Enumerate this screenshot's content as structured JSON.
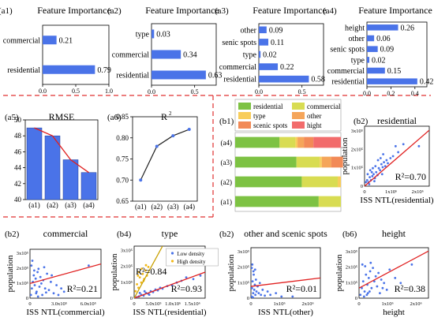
{
  "chart_data": [
    {
      "panel": "(a1)",
      "type": "bar",
      "orientation": "horizontal",
      "title": "Feature Importance",
      "categories": [
        "commercial",
        "residential"
      ],
      "values": [
        0.21,
        0.79
      ],
      "value_labels": [
        "0.21",
        "0.79"
      ],
      "xlim": [
        0,
        1
      ],
      "xticks": [
        "0.0",
        "0.5",
        "1.0"
      ],
      "color": "#4a73e8"
    },
    {
      "panel": "(a2)",
      "type": "bar",
      "orientation": "horizontal",
      "title": "Feature Importance",
      "categories": [
        "type",
        "commercial",
        "residential"
      ],
      "values": [
        0.03,
        0.34,
        0.63
      ],
      "value_labels": [
        "0.03",
        "0.34",
        "0.63"
      ],
      "xlim": [
        0,
        0.75
      ],
      "xticks": [
        "0.0",
        "0.5"
      ],
      "color": "#4a73e8"
    },
    {
      "panel": "(a3)",
      "type": "bar",
      "orientation": "horizontal",
      "title": "Feature  Importance",
      "categories": [
        "other",
        "senic spots",
        "type",
        "commercial",
        "residential"
      ],
      "values": [
        0.09,
        0.11,
        0.02,
        0.22,
        0.58
      ],
      "value_labels": [
        "0.09",
        "0.11",
        "0.02",
        "0.22",
        "0.58"
      ],
      "xlim": [
        0,
        0.75
      ],
      "xticks": [
        "0.0",
        "0.5"
      ],
      "color": "#4a73e8"
    },
    {
      "panel": "(a4)",
      "type": "bar",
      "orientation": "horizontal",
      "title": "Feature Importance",
      "categories": [
        "height",
        "other",
        "senic spots",
        "type",
        "commercial",
        "residential"
      ],
      "values": [
        0.26,
        0.06,
        0.09,
        0.02,
        0.15,
        0.42
      ],
      "value_labels": [
        "0.26",
        "0.06",
        "0.09",
        "0.02",
        "0.15",
        "0.42"
      ],
      "xlim": [
        0,
        0.5
      ],
      "xticks": [
        "0.0",
        "0.2",
        "0.4"
      ],
      "color": "#4a73e8"
    },
    {
      "panel": "(a5)",
      "type": "bar",
      "title": "RMSE",
      "categories": [
        "(a1)",
        "(a2)",
        "(a3)",
        "(a4)"
      ],
      "values": [
        49.0,
        48.0,
        45.0,
        43.4
      ],
      "ylim": [
        40,
        50
      ],
      "yticks": [
        "40",
        "42",
        "44",
        "46",
        "48",
        "50"
      ],
      "color": "#4a73e8",
      "line_color": "#e02020"
    },
    {
      "panel": "(a6)",
      "type": "line",
      "title": "R",
      "title_sup": "2",
      "categories": [
        "(a1)",
        "(a2)",
        "(a3)",
        "(a4)"
      ],
      "values": [
        0.7,
        0.78,
        0.805,
        0.82
      ],
      "ylim": [
        0.65,
        0.85
      ],
      "yticks": [
        "0.65",
        "0.70",
        "0.75",
        "0.80",
        "0.85"
      ],
      "color": "#222222",
      "marker_color": "#4a73e8"
    },
    {
      "panel": "(b1)",
      "type": "bar",
      "orientation": "horizontal",
      "stacked": true,
      "categories": [
        "(a4)",
        "(a3)",
        "(a2)",
        "(a1)"
      ],
      "series": [
        {
          "name": "residential",
          "color": "#7dc243",
          "values": [
            0.42,
            0.58,
            0.63,
            0.79
          ]
        },
        {
          "name": "commercial",
          "color": "#d8dc52",
          "values": [
            0.15,
            0.22,
            0.34,
            0.21
          ]
        },
        {
          "name": "type",
          "color": "#f8cd5b",
          "values": [
            0.02,
            0.02,
            0.03,
            0
          ]
        },
        {
          "name": "other",
          "color": "#f5a55a",
          "values": [
            0.06,
            0.09,
            0,
            0
          ]
        },
        {
          "name": "scenic spots",
          "color": "#f28a57",
          "values": [
            0.09,
            0.11,
            0,
            0
          ]
        },
        {
          "name": "hight",
          "color": "#f26b6b",
          "values": [
            0.26,
            0,
            0,
            0
          ]
        }
      ]
    },
    {
      "panel": "(b2)",
      "type": "scatter",
      "title": "residential",
      "xlabel": "ISS NTL(residential)",
      "ylabel": "population",
      "xticks": [
        "0",
        "1x10⁶",
        "2x10⁶"
      ],
      "yticks": [
        "0",
        "1x10⁵",
        "2x10⁵",
        "3x10⁵"
      ],
      "annotation": "R²=0.70",
      "xlim": [
        0,
        2500000
      ],
      "ylim": [
        0,
        300000
      ],
      "trend": [
        [
          0,
          0
        ],
        [
          2500000,
          280000
        ]
      ],
      "points": [
        [
          50000,
          20000
        ],
        [
          100000,
          30000
        ],
        [
          150000,
          20000
        ],
        [
          200000,
          45000
        ],
        [
          250000,
          30000
        ],
        [
          300000,
          50000
        ],
        [
          350000,
          60000
        ],
        [
          400000,
          40000
        ],
        [
          450000,
          70000
        ],
        [
          500000,
          55000
        ],
        [
          550000,
          90000
        ],
        [
          600000,
          80000
        ],
        [
          650000,
          110000
        ],
        [
          700000,
          95000
        ],
        [
          750000,
          120000
        ],
        [
          800000,
          100000
        ],
        [
          850000,
          130000
        ],
        [
          900000,
          115000
        ],
        [
          1000000,
          140000
        ],
        [
          1100000,
          150000
        ],
        [
          1200000,
          200000
        ],
        [
          1300000,
          170000
        ],
        [
          1500000,
          210000
        ],
        [
          2100000,
          200000
        ],
        [
          120000,
          60000
        ],
        [
          220000,
          80000
        ],
        [
          320000,
          90000
        ],
        [
          420000,
          100000
        ],
        [
          520000,
          130000
        ],
        [
          620000,
          140000
        ],
        [
          720000,
          160000
        ],
        [
          180000,
          10000
        ],
        [
          380000,
          25000
        ],
        [
          280000,
          70000
        ],
        [
          680000,
          60000
        ]
      ]
    },
    {
      "panel": "(b2)",
      "type": "scatter",
      "title": "commercial",
      "xlabel": "ISS NTL(commercial)",
      "ylabel": "population",
      "xticks": [
        "0",
        "3.0x10⁵",
        "6.0x10⁵"
      ],
      "yticks": [
        "0",
        "1x10⁵",
        "2x10⁵",
        "3x10⁵"
      ],
      "annotation": "R²=0.21",
      "xlim": [
        0,
        750000
      ],
      "ylim": [
        0,
        300000
      ],
      "trend": [
        [
          0,
          90000
        ],
        [
          750000,
          210000
        ]
      ],
      "points": [
        [
          10000,
          20000
        ],
        [
          20000,
          60000
        ],
        [
          30000,
          100000
        ],
        [
          40000,
          140000
        ],
        [
          50000,
          80000
        ],
        [
          60000,
          120000
        ],
        [
          70000,
          40000
        ],
        [
          80000,
          160000
        ],
        [
          90000,
          180000
        ],
        [
          100000,
          70000
        ],
        [
          110000,
          130000
        ],
        [
          120000,
          90000
        ],
        [
          140000,
          110000
        ],
        [
          160000,
          60000
        ],
        [
          180000,
          150000
        ],
        [
          200000,
          50000
        ],
        [
          220000,
          100000
        ],
        [
          250000,
          30000
        ],
        [
          280000,
          80000
        ],
        [
          300000,
          20000
        ],
        [
          330000,
          60000
        ],
        [
          360000,
          40000
        ],
        [
          15000,
          200000
        ],
        [
          25000,
          230000
        ],
        [
          45000,
          170000
        ],
        [
          65000,
          30000
        ],
        [
          85000,
          10000
        ],
        [
          130000,
          20000
        ],
        [
          170000,
          35000
        ],
        [
          230000,
          140000
        ],
        [
          620000,
          200000
        ],
        [
          150000,
          190000
        ]
      ]
    },
    {
      "panel": "(b4)",
      "type": "scatter",
      "title": "type",
      "xlabel": "ISS NTL(residential)",
      "ylabel": "population",
      "xticks": [
        "0",
        "5.0x10⁵",
        "1.0x10⁶",
        "1.5x10⁶"
      ],
      "yticks": [
        "0",
        "1x10⁵",
        "2x10⁵",
        "3x10⁵"
      ],
      "legend": [
        "Low density",
        "High density"
      ],
      "annotations": [
        "R²=0.84",
        "R²=0.93"
      ],
      "xlim": [
        0,
        1500000
      ],
      "ylim": [
        0,
        300000
      ],
      "series": [
        {
          "name": "Low density",
          "color": "#4a73e8",
          "trend_color": "#e02020",
          "trend": [
            [
              0,
              0
            ],
            [
              1500000,
              150000
            ]
          ],
          "points": [
            [
              50000,
              5000
            ],
            [
              100000,
              10000
            ],
            [
              150000,
              20000
            ],
            [
              200000,
              15000
            ],
            [
              250000,
              30000
            ],
            [
              300000,
              25000
            ],
            [
              350000,
              40000
            ],
            [
              400000,
              35000
            ],
            [
              450000,
              50000
            ],
            [
              500000,
              45000
            ],
            [
              550000,
              60000
            ],
            [
              600000,
              55000
            ],
            [
              700000,
              70000
            ],
            [
              800000,
              75000
            ],
            [
              900000,
              90000
            ],
            [
              1000000,
              100000
            ],
            [
              1100000,
              120000
            ],
            [
              1250000,
              110000
            ],
            [
              1400000,
              130000
            ],
            [
              120000,
              30000
            ],
            [
              220000,
              40000
            ],
            [
              320000,
              20000
            ]
          ]
        },
        {
          "name": "High density",
          "color": "#f2b817",
          "trend_color": "#c8a000",
          "trend": [
            [
              0,
              0
            ],
            [
              600000,
              300000
            ]
          ],
          "points": [
            [
              30000,
              40000
            ],
            [
              60000,
              80000
            ],
            [
              90000,
              60000
            ],
            [
              120000,
              120000
            ],
            [
              150000,
              90000
            ],
            [
              180000,
              140000
            ],
            [
              210000,
              110000
            ],
            [
              240000,
              160000
            ],
            [
              270000,
              130000
            ],
            [
              300000,
              180000
            ],
            [
              100000,
              150000
            ],
            [
              200000,
              100000
            ],
            [
              160000,
              170000
            ],
            [
              250000,
              190000
            ],
            [
              80000,
              130000
            ]
          ]
        }
      ]
    },
    {
      "panel": "(b2)",
      "type": "scatter",
      "title": "other and scenic spots",
      "xlabel": "ISS NTL(other)",
      "ylabel": "population",
      "xticks": [
        "0",
        "1x10⁶",
        "2x10⁶"
      ],
      "yticks": [
        "0",
        "1x10⁵",
        "2x10⁵",
        "3x10⁵"
      ],
      "annotation": "R²=0.01",
      "xlim": [
        0,
        2500000
      ],
      "ylim": [
        0,
        300000
      ],
      "trend": [
        [
          0,
          70000
        ],
        [
          2500000,
          120000
        ]
      ],
      "points": [
        [
          20000,
          10000
        ],
        [
          40000,
          60000
        ],
        [
          60000,
          100000
        ],
        [
          80000,
          30000
        ],
        [
          100000,
          140000
        ],
        [
          120000,
          50000
        ],
        [
          140000,
          80000
        ],
        [
          160000,
          20000
        ],
        [
          180000,
          110000
        ],
        [
          200000,
          40000
        ],
        [
          240000,
          70000
        ],
        [
          280000,
          30000
        ],
        [
          320000,
          90000
        ],
        [
          360000,
          20000
        ],
        [
          420000,
          50000
        ],
        [
          500000,
          15000
        ],
        [
          600000,
          40000
        ],
        [
          700000,
          20000
        ],
        [
          900000,
          30000
        ],
        [
          1100000,
          10000
        ],
        [
          30000,
          180000
        ],
        [
          50000,
          200000
        ],
        [
          90000,
          160000
        ],
        [
          150000,
          170000
        ],
        [
          70000,
          5000
        ],
        [
          1500000,
          10000
        ]
      ]
    },
    {
      "panel": "(b6)",
      "type": "scatter",
      "title": "height",
      "xlabel": "height",
      "ylabel": "population",
      "xticks": [
        "0",
        "1x10⁶",
        "2x10⁶"
      ],
      "yticks": [
        "0",
        "1x10⁵",
        "2x10⁵",
        "3x10⁵"
      ],
      "annotation": "R²=0.38",
      "xlim": [
        0,
        2500000
      ],
      "ylim": [
        0,
        300000
      ],
      "trend": [
        [
          0,
          60000
        ],
        [
          2500000,
          280000
        ]
      ],
      "points": [
        [
          50000,
          20000
        ],
        [
          100000,
          60000
        ],
        [
          150000,
          100000
        ],
        [
          200000,
          40000
        ],
        [
          250000,
          140000
        ],
        [
          300000,
          80000
        ],
        [
          350000,
          120000
        ],
        [
          400000,
          160000
        ],
        [
          450000,
          60000
        ],
        [
          500000,
          180000
        ],
        [
          550000,
          100000
        ],
        [
          600000,
          130000
        ],
        [
          650000,
          70000
        ],
        [
          700000,
          150000
        ],
        [
          800000,
          110000
        ],
        [
          900000,
          90000
        ],
        [
          1000000,
          50000
        ],
        [
          1100000,
          170000
        ],
        [
          1300000,
          120000
        ],
        [
          1500000,
          90000
        ],
        [
          1900000,
          200000
        ],
        [
          120000,
          200000
        ],
        [
          220000,
          190000
        ],
        [
          320000,
          30000
        ],
        [
          420000,
          210000
        ],
        [
          180000,
          10000
        ],
        [
          280000,
          20000
        ],
        [
          380000,
          40000
        ],
        [
          750000,
          30000
        ],
        [
          850000,
          60000
        ]
      ]
    }
  ]
}
